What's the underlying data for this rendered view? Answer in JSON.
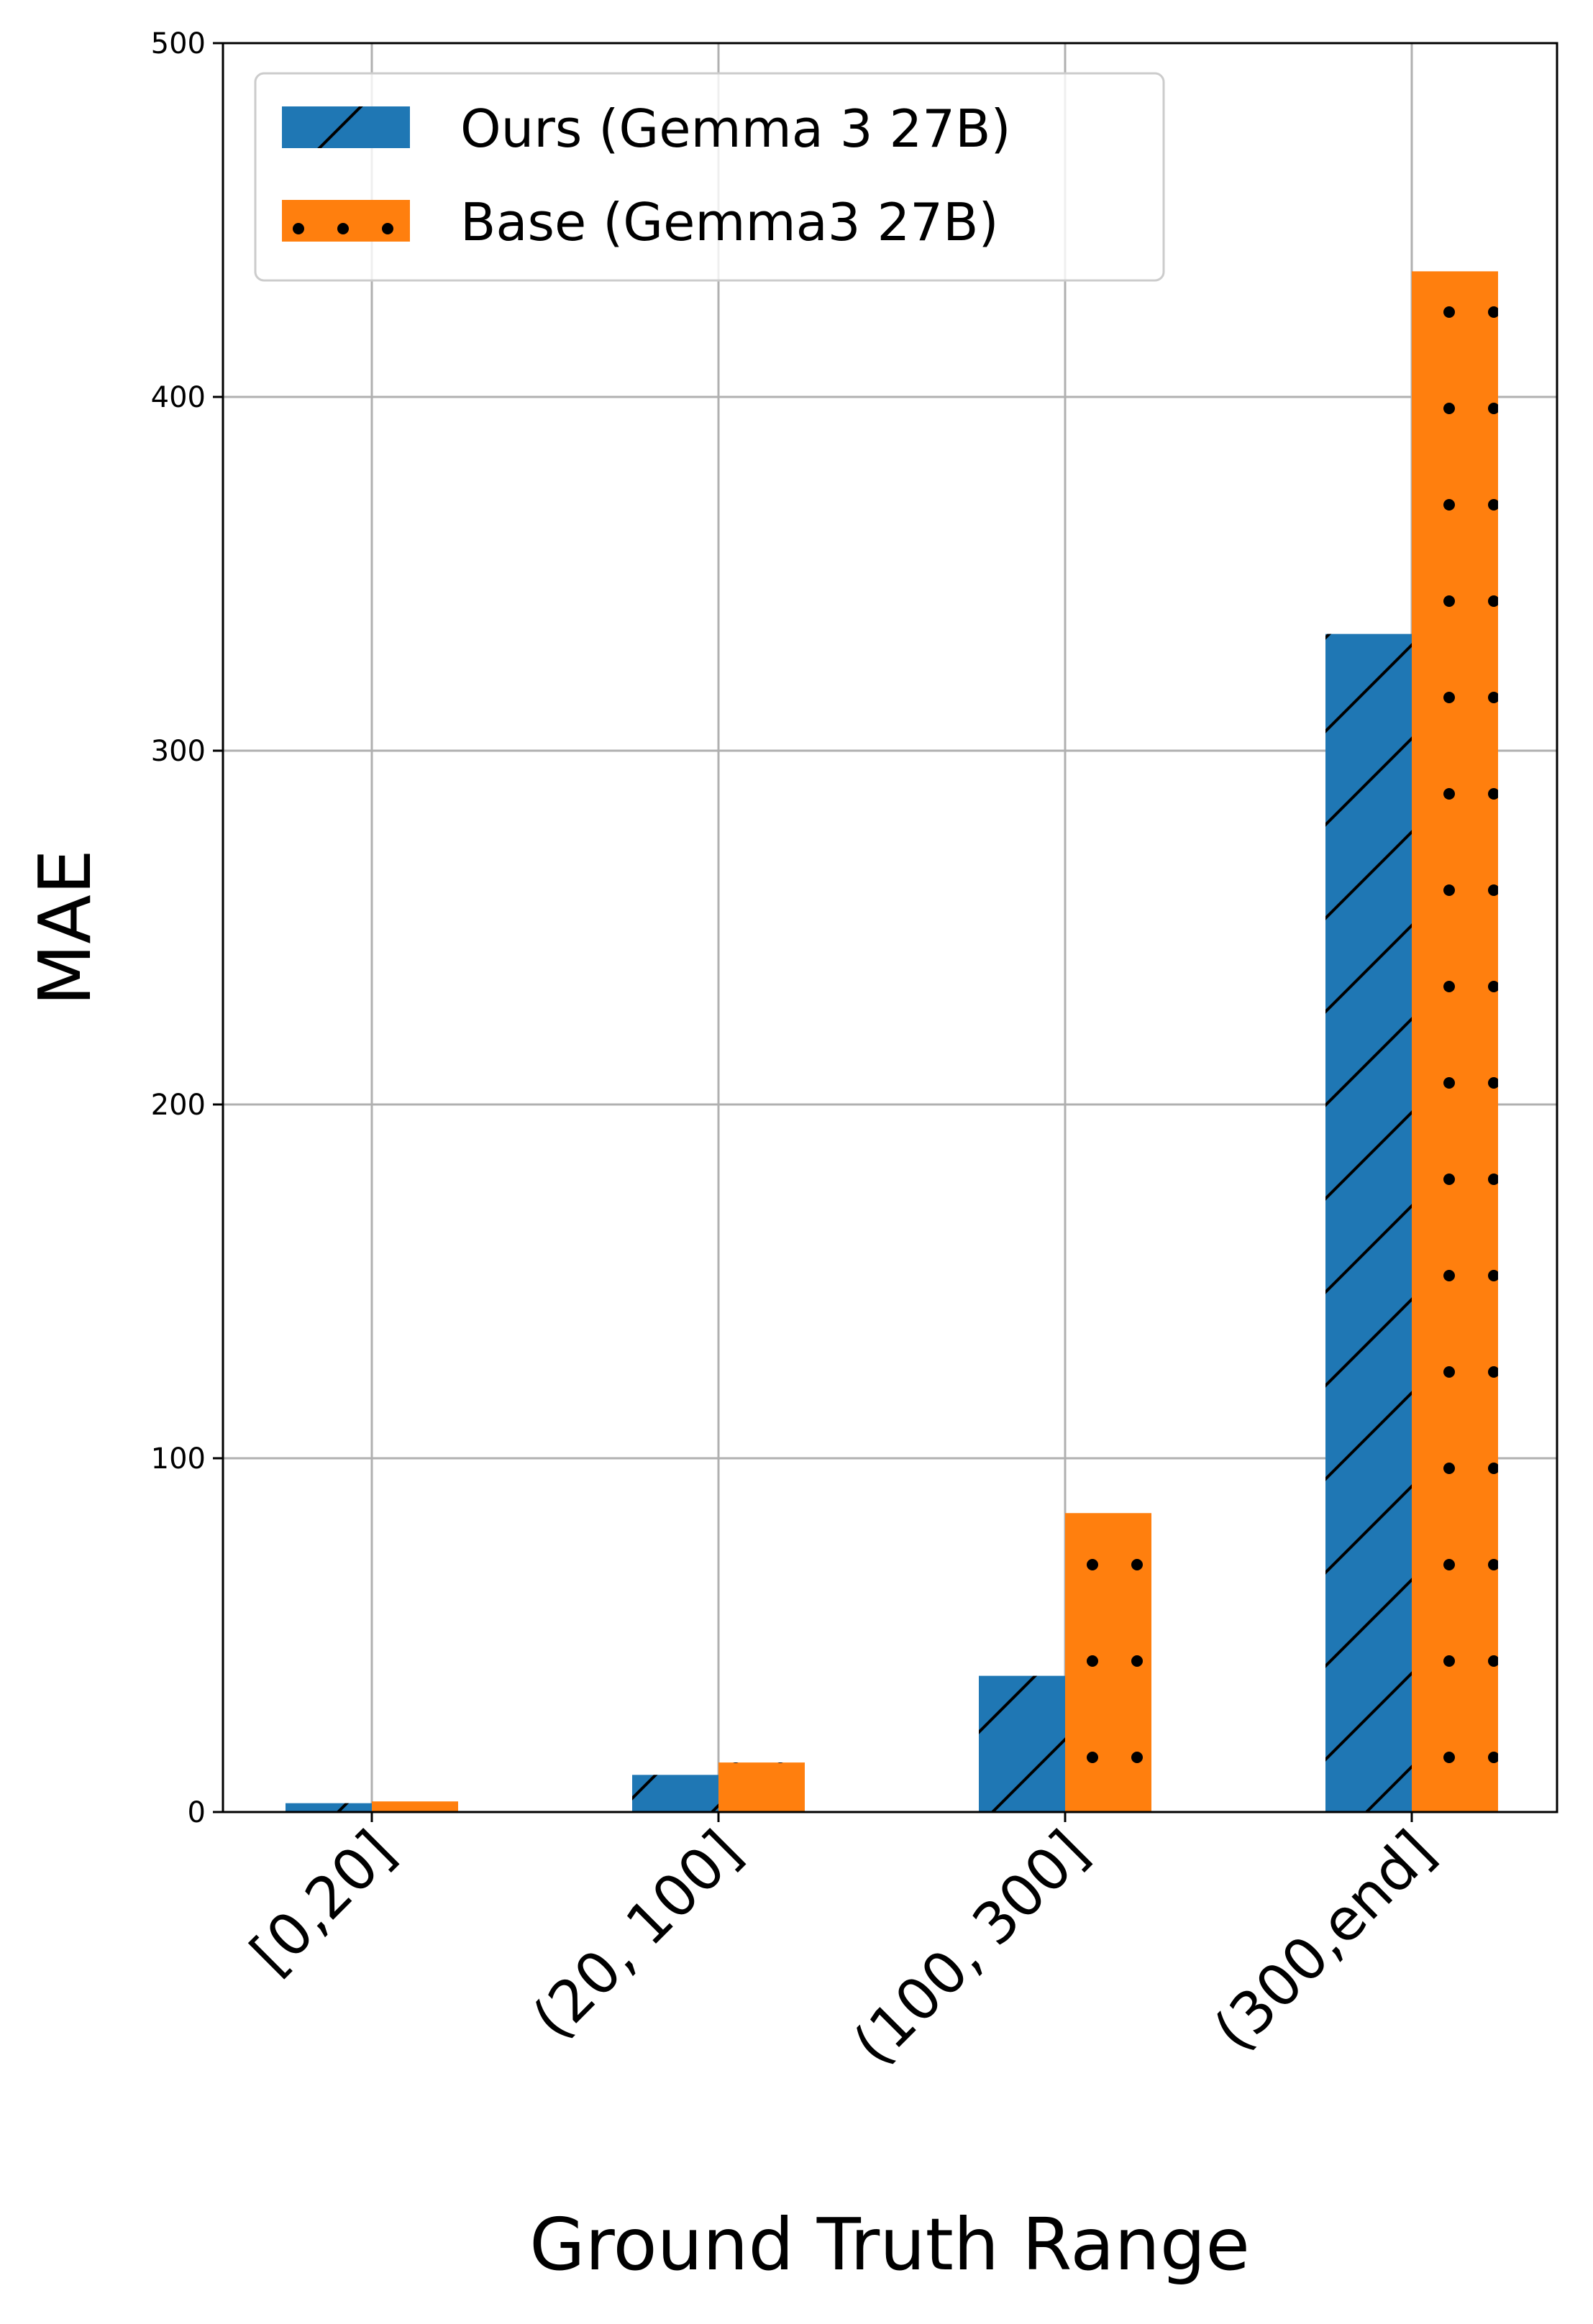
{
  "chart_data": {
    "type": "bar",
    "categories": [
      "[0,20]",
      "(20, 100]",
      "(100, 300]",
      "(300,end]"
    ],
    "series": [
      {
        "name": "Ours (Gemma 3 27B)",
        "values": [
          2.5,
          10.5,
          38.5,
          333
        ],
        "color": "#1f77b4",
        "hatch": "diagonal"
      },
      {
        "name": "Base (Gemma3 27B)",
        "values": [
          3,
          14,
          84.5,
          435.5
        ],
        "color": "#ff7f0e",
        "hatch": "dots"
      }
    ],
    "xlabel": "Ground Truth Range",
    "ylabel": "MAE",
    "ylim": [
      0,
      500
    ],
    "yticks": [
      0,
      100,
      200,
      300,
      400,
      500
    ],
    "grid": true,
    "legend_position": "top-left"
  }
}
